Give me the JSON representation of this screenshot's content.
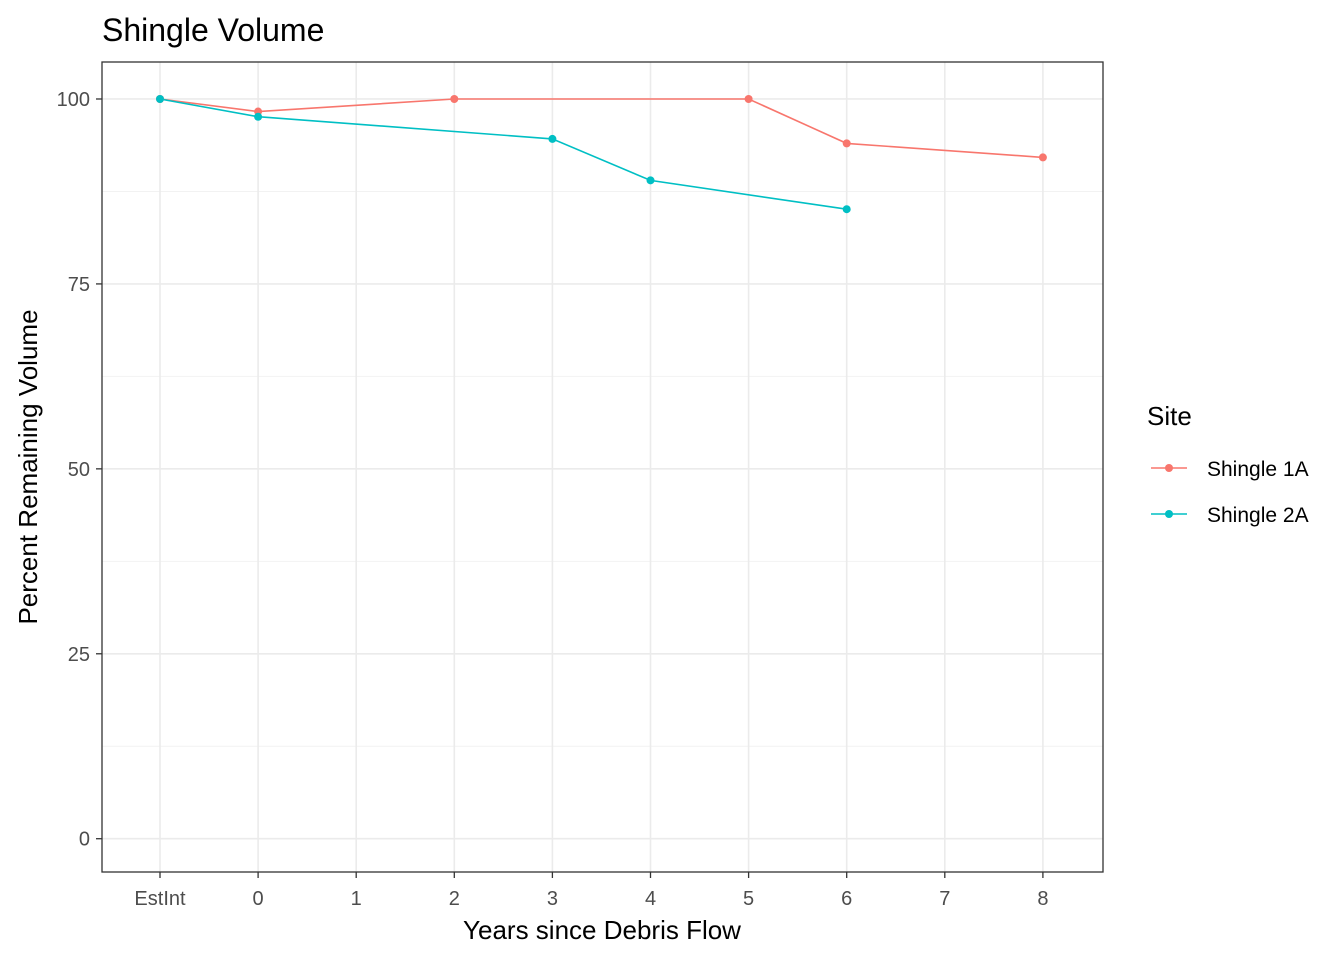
{
  "chart_data": {
    "type": "line",
    "title": "Shingle Volume",
    "xlabel": "Years since Debris Flow",
    "ylabel": "Percent Remaining Volume",
    "categories": [
      "EstInt",
      "0",
      "1",
      "2",
      "3",
      "4",
      "5",
      "6",
      "7",
      "8"
    ],
    "y_ticks": [
      0,
      25,
      50,
      75,
      100
    ],
    "ylim": [
      -4.5,
      105
    ],
    "grid": true,
    "legend": {
      "title": "Site",
      "position": "right"
    },
    "series": [
      {
        "name": "Shingle 1A",
        "color": "#f8766d",
        "points": [
          {
            "x": "EstInt",
            "y": 100
          },
          {
            "x": "0",
            "y": 98.3
          },
          {
            "x": "2",
            "y": 100
          },
          {
            "x": "5",
            "y": 100
          },
          {
            "x": "6",
            "y": 94
          },
          {
            "x": "8",
            "y": 92.1
          }
        ]
      },
      {
        "name": "Shingle 2A",
        "color": "#00bfc4",
        "points": [
          {
            "x": "EstInt",
            "y": 100
          },
          {
            "x": "0",
            "y": 97.6
          },
          {
            "x": "3",
            "y": 94.6
          },
          {
            "x": "4",
            "y": 89
          },
          {
            "x": "6",
            "y": 85.1
          }
        ]
      }
    ]
  }
}
